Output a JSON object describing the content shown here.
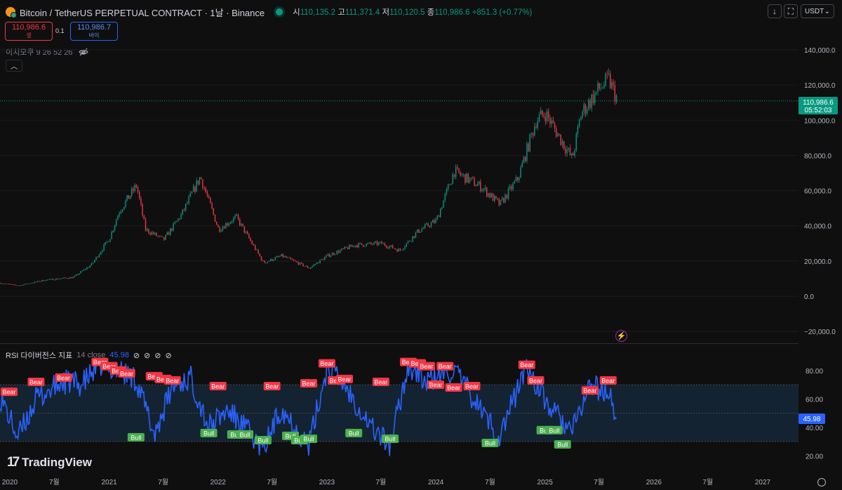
{
  "header": {
    "title": "Bitcoin / TetherUS PERPETUAL CONTRACT · 1날 · Binance",
    "ohlc": [
      {
        "label": "시",
        "value": "110,135.2"
      },
      {
        "label": "고",
        "value": "111,371.4"
      },
      {
        "label": "저",
        "value": "110,120.5"
      },
      {
        "label": "종",
        "value": "110,986.6"
      }
    ],
    "change": "+851.3 (+0.77%)",
    "currency": "USDT",
    "download_icon": "down-arrow-icon",
    "fullscreen_icon": "expand-icon",
    "currency_chevron_icon": "chevron-down-icon"
  },
  "trade": {
    "sell_price": "110,986.6",
    "sell_label": "셀",
    "quantity": "0.1",
    "buy_price": "110,986.7",
    "buy_label": "바이"
  },
  "indicators": {
    "ichimoku": "이치모쿠 9 26 52 26",
    "rsi_name": "RSI 다이버전스 지표",
    "rsi_params": "14 close",
    "rsi_value": "45.98"
  },
  "price_label": {
    "price": "110,986.6",
    "countdown": "05:52:03"
  },
  "rsi_label": "45.98",
  "price_axis_ticks": [
    "140,000.0",
    "120,000.0",
    "100,000.0",
    "80,000.0",
    "60,000.0",
    "40,000.0",
    "20,000.0",
    "0.0",
    "−20,000.0"
  ],
  "rsi_axis_ticks": [
    "80.00",
    "60.00",
    "40.00",
    "20.00"
  ],
  "time_axis_ticks": [
    "2020",
    "7월",
    "2021",
    "7월",
    "2022",
    "7월",
    "2023",
    "7월",
    "2024",
    "7월",
    "2025",
    "7월",
    "2026",
    "7월",
    "2027"
  ],
  "brand": "TradingView",
  "colors": {
    "bull": "#089981",
    "bear": "#f23645",
    "rsi_line": "#2962ff",
    "bull_label": "#4caf50",
    "bear_label": "#f23645",
    "band": "#142331"
  },
  "chart_data": [
    {
      "type": "candlestick",
      "title": "Bitcoin / TetherUS PERPETUAL CONTRACT",
      "interval": "1날",
      "x_range": [
        "2020-01-01",
        "2027-01-01"
      ],
      "ylim": [
        -20000,
        140000
      ],
      "last_close": 110986.6,
      "price_path_monthly": [
        {
          "x": "2020-01",
          "y": 7500
        },
        {
          "x": "2020-03",
          "y": 6000
        },
        {
          "x": "2020-06",
          "y": 9300
        },
        {
          "x": "2020-09",
          "y": 10700
        },
        {
          "x": "2020-11",
          "y": 18000
        },
        {
          "x": "2021-01",
          "y": 33000
        },
        {
          "x": "2021-02",
          "y": 48000
        },
        {
          "x": "2021-04",
          "y": 63000
        },
        {
          "x": "2021-05",
          "y": 38000
        },
        {
          "x": "2021-07",
          "y": 32000
        },
        {
          "x": "2021-09",
          "y": 47000
        },
        {
          "x": "2021-11",
          "y": 68000
        },
        {
          "x": "2022-01",
          "y": 38000
        },
        {
          "x": "2022-03",
          "y": 45000
        },
        {
          "x": "2022-06",
          "y": 19000
        },
        {
          "x": "2022-08",
          "y": 23000
        },
        {
          "x": "2022-11",
          "y": 16000
        },
        {
          "x": "2023-01",
          "y": 23000
        },
        {
          "x": "2023-04",
          "y": 29000
        },
        {
          "x": "2023-07",
          "y": 30000
        },
        {
          "x": "2023-09",
          "y": 26000
        },
        {
          "x": "2023-11",
          "y": 37000
        },
        {
          "x": "2024-01",
          "y": 43000
        },
        {
          "x": "2024-03",
          "y": 71000
        },
        {
          "x": "2024-06",
          "y": 62000
        },
        {
          "x": "2024-08",
          "y": 52000
        },
        {
          "x": "2024-10",
          "y": 67000
        },
        {
          "x": "2024-12",
          "y": 100000
        },
        {
          "x": "2025-01",
          "y": 104000
        },
        {
          "x": "2025-04",
          "y": 78000
        },
        {
          "x": "2025-05",
          "y": 104000
        },
        {
          "x": "2025-07",
          "y": 118000
        },
        {
          "x": "2025-08",
          "y": 123000
        },
        {
          "x": "2025-09",
          "y": 110986.6
        }
      ]
    },
    {
      "type": "line",
      "title": "RSI 다이버전스 지표",
      "params": "14 close",
      "ylim": [
        15,
        90
      ],
      "band": [
        30,
        70
      ],
      "midline": 50,
      "last_value": 45.98,
      "rsi_path": [
        {
          "x": "2020-01",
          "y": 62
        },
        {
          "x": "2020-03",
          "y": 33
        },
        {
          "x": "2020-05",
          "y": 60
        },
        {
          "x": "2020-08",
          "y": 72
        },
        {
          "x": "2020-10",
          "y": 70
        },
        {
          "x": "2020-12",
          "y": 84
        },
        {
          "x": "2021-02",
          "y": 80
        },
        {
          "x": "2021-04",
          "y": 74
        },
        {
          "x": "2021-06",
          "y": 35
        },
        {
          "x": "2021-08",
          "y": 68
        },
        {
          "x": "2021-10",
          "y": 75
        },
        {
          "x": "2021-12",
          "y": 40
        },
        {
          "x": "2022-02",
          "y": 52
        },
        {
          "x": "2022-04",
          "y": 40
        },
        {
          "x": "2022-06",
          "y": 24
        },
        {
          "x": "2022-08",
          "y": 54
        },
        {
          "x": "2022-11",
          "y": 27
        },
        {
          "x": "2023-01",
          "y": 82
        },
        {
          "x": "2023-03",
          "y": 70
        },
        {
          "x": "2023-06",
          "y": 40
        },
        {
          "x": "2023-08",
          "y": 27
        },
        {
          "x": "2023-10",
          "y": 84
        },
        {
          "x": "2023-12",
          "y": 72
        },
        {
          "x": "2024-03",
          "y": 80
        },
        {
          "x": "2024-05",
          "y": 62
        },
        {
          "x": "2024-08",
          "y": 33
        },
        {
          "x": "2024-11",
          "y": 84
        },
        {
          "x": "2025-01",
          "y": 58
        },
        {
          "x": "2025-04",
          "y": 36
        },
        {
          "x": "2025-06",
          "y": 70
        },
        {
          "x": "2025-08",
          "y": 64
        },
        {
          "x": "2025-09",
          "y": 45.98
        }
      ],
      "annotations": [
        {
          "text": "Bear",
          "x": "2019-12",
          "y": 65
        },
        {
          "text": "Bear",
          "x": "2020-05",
          "y": 72
        },
        {
          "text": "Bear",
          "x": "2020-08",
          "y": 75
        },
        {
          "text": "Bear",
          "x": "2020-12",
          "y": 86
        },
        {
          "text": "Bear",
          "x": "2021-01",
          "y": 83
        },
        {
          "text": "Bear",
          "x": "2021-02",
          "y": 80
        },
        {
          "text": "Bear",
          "x": "2021-03",
          "y": 78
        },
        {
          "text": "Bear",
          "x": "2021-06",
          "y": 76
        },
        {
          "text": "Bear",
          "x": "2021-07",
          "y": 74
        },
        {
          "text": "Bear",
          "x": "2021-08",
          "y": 73
        },
        {
          "text": "Bull",
          "x": "2021-04",
          "y": 33
        },
        {
          "text": "Bull",
          "x": "2021-12",
          "y": 36
        },
        {
          "text": "Bear",
          "x": "2022-01",
          "y": 69
        },
        {
          "text": "Bull",
          "x": "2022-03",
          "y": 35
        },
        {
          "text": "Bull",
          "x": "2022-04",
          "y": 35
        },
        {
          "text": "Bull",
          "x": "2022-06",
          "y": 31
        },
        {
          "text": "Bear",
          "x": "2022-07",
          "y": 69
        },
        {
          "text": "Bull",
          "x": "2022-09",
          "y": 34
        },
        {
          "text": "Bull",
          "x": "2022-10",
          "y": 31
        },
        {
          "text": "Bull",
          "x": "2022-11",
          "y": 32
        },
        {
          "text": "Bear",
          "x": "2022-11",
          "y": 71
        },
        {
          "text": "Bear",
          "x": "2023-01",
          "y": 85
        },
        {
          "text": "Bear",
          "x": "2023-02",
          "y": 73
        },
        {
          "text": "Bear",
          "x": "2023-03",
          "y": 74
        },
        {
          "text": "Bull",
          "x": "2023-04",
          "y": 36
        },
        {
          "text": "Bear",
          "x": "2023-07",
          "y": 72
        },
        {
          "text": "Bull",
          "x": "2023-08",
          "y": 32
        },
        {
          "text": "Bear",
          "x": "2023-10",
          "y": 86
        },
        {
          "text": "Bear",
          "x": "2023-11",
          "y": 85
        },
        {
          "text": "Bear",
          "x": "2023-12",
          "y": 83
        },
        {
          "text": "Bear",
          "x": "2024-01",
          "y": 70
        },
        {
          "text": "Bear",
          "x": "2024-02",
          "y": 83
        },
        {
          "text": "Bear",
          "x": "2024-03",
          "y": 68
        },
        {
          "text": "Bear",
          "x": "2024-05",
          "y": 69
        },
        {
          "text": "Bull",
          "x": "2024-07",
          "y": 29
        },
        {
          "text": "Bear",
          "x": "2024-11",
          "y": 84
        },
        {
          "text": "Bear",
          "x": "2024-12",
          "y": 73
        },
        {
          "text": "Bull",
          "x": "2025-01",
          "y": 38
        },
        {
          "text": "Bull",
          "x": "2025-02",
          "y": 38
        },
        {
          "text": "Bull",
          "x": "2025-03",
          "y": 28
        },
        {
          "text": "Bear",
          "x": "2025-06",
          "y": 66
        },
        {
          "text": "Bear",
          "x": "2025-08",
          "y": 73
        }
      ]
    }
  ]
}
